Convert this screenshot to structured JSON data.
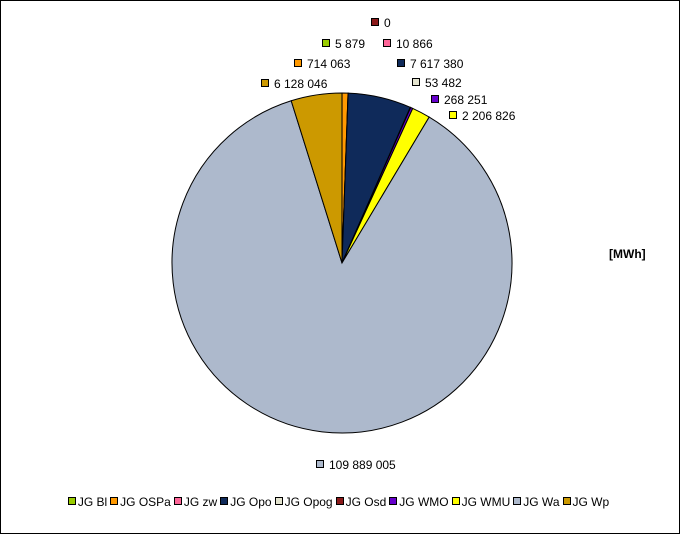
{
  "chart_data": {
    "type": "pie",
    "title": "",
    "unit_label": "[MWh]",
    "slices": [
      {
        "name": "JG Bl",
        "value": 5879,
        "label": "5 879",
        "color": "#99cc00"
      },
      {
        "name": "JG OSPa",
        "value": 714063,
        "label": "714 063",
        "color": "#ff9900"
      },
      {
        "name": "JG zw",
        "value": 10866,
        "label": "10 866",
        "color": "#ff6699"
      },
      {
        "name": "JG Opo",
        "value": 7617380,
        "label": "7 617 380",
        "color": "#0f2a5a"
      },
      {
        "name": "JG Opog",
        "value": 53482,
        "label": "53 482",
        "color": "#e4e4cf"
      },
      {
        "name": "JG Osd",
        "value": 0,
        "label": "0",
        "color": "#8b1a1a"
      },
      {
        "name": "JG WMO",
        "value": 268251,
        "label": "268 251",
        "color": "#6600cc"
      },
      {
        "name": "JG WMU",
        "value": 2206826,
        "label": "2 206 826",
        "color": "#ffff00"
      },
      {
        "name": "JG Wa",
        "value": 109889005,
        "label": "109 889 005",
        "color": "#adb9cc"
      },
      {
        "name": "JG Wp",
        "value": 6128046,
        "label": "6 128 046",
        "color": "#cc9900"
      }
    ],
    "legend_position": "bottom"
  }
}
